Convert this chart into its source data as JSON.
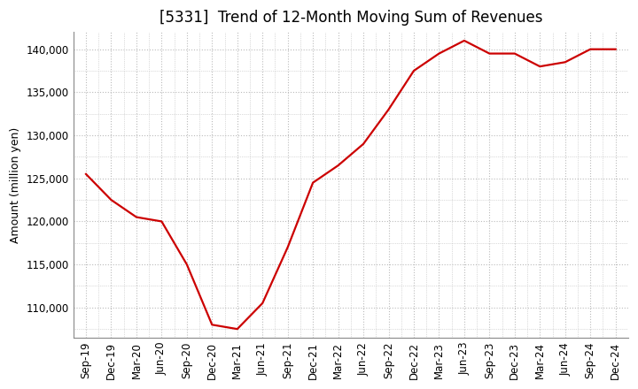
{
  "title": "[5331]  Trend of 12-Month Moving Sum of Revenues",
  "ylabel": "Amount (million yen)",
  "line_color": "#cc0000",
  "background_color": "#ffffff",
  "plot_bg_color": "#ffffff",
  "grid_color": "#bbbbbb",
  "x_labels": [
    "Sep-19",
    "Dec-19",
    "Mar-20",
    "Jun-20",
    "Sep-20",
    "Dec-20",
    "Mar-21",
    "Jun-21",
    "Sep-21",
    "Dec-21",
    "Mar-22",
    "Jun-22",
    "Sep-22",
    "Dec-22",
    "Mar-23",
    "Jun-23",
    "Sep-23",
    "Dec-23",
    "Mar-24",
    "Jun-24",
    "Sep-24",
    "Dec-24"
  ],
  "values": [
    125500,
    122500,
    120500,
    120000,
    115000,
    108000,
    107500,
    110500,
    117000,
    124500,
    126500,
    129000,
    133000,
    137500,
    139500,
    141000,
    139500,
    139500,
    138000,
    138500,
    140000,
    140000
  ],
  "ylim": [
    106500,
    142000
  ],
  "yticks": [
    110000,
    115000,
    120000,
    125000,
    130000,
    135000,
    140000
  ],
  "title_fontsize": 12,
  "tick_fontsize": 8.5,
  "ylabel_fontsize": 9,
  "line_width": 1.6
}
